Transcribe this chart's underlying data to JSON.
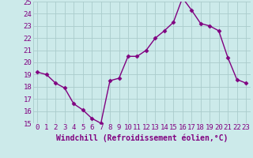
{
  "x": [
    0,
    1,
    2,
    3,
    4,
    5,
    6,
    7,
    8,
    9,
    10,
    11,
    12,
    13,
    14,
    15,
    16,
    17,
    18,
    19,
    20,
    21,
    22,
    23
  ],
  "y": [
    19.2,
    19.0,
    18.3,
    17.9,
    16.6,
    16.1,
    15.4,
    15.0,
    18.5,
    18.7,
    20.5,
    20.5,
    21.0,
    22.0,
    22.6,
    23.3,
    25.3,
    24.3,
    23.2,
    23.0,
    22.6,
    20.4,
    18.6,
    18.3
  ],
  "line_color": "#800080",
  "marker": "D",
  "marker_size": 2.5,
  "bg_color": "#cceaea",
  "grid_color": "#aacccc",
  "xlabel": "Windchill (Refroidissement éolien,°C)",
  "xlabel_color": "#800080",
  "tick_color": "#800080",
  "ylim": [
    15,
    25
  ],
  "yticks": [
    15,
    16,
    17,
    18,
    19,
    20,
    21,
    22,
    23,
    24,
    25
  ],
  "xticks": [
    0,
    1,
    2,
    3,
    4,
    5,
    6,
    7,
    8,
    9,
    10,
    11,
    12,
    13,
    14,
    15,
    16,
    17,
    18,
    19,
    20,
    21,
    22,
    23
  ],
  "line_width": 1.0,
  "tick_fontsize": 6.5,
  "xlabel_fontsize": 7.0
}
